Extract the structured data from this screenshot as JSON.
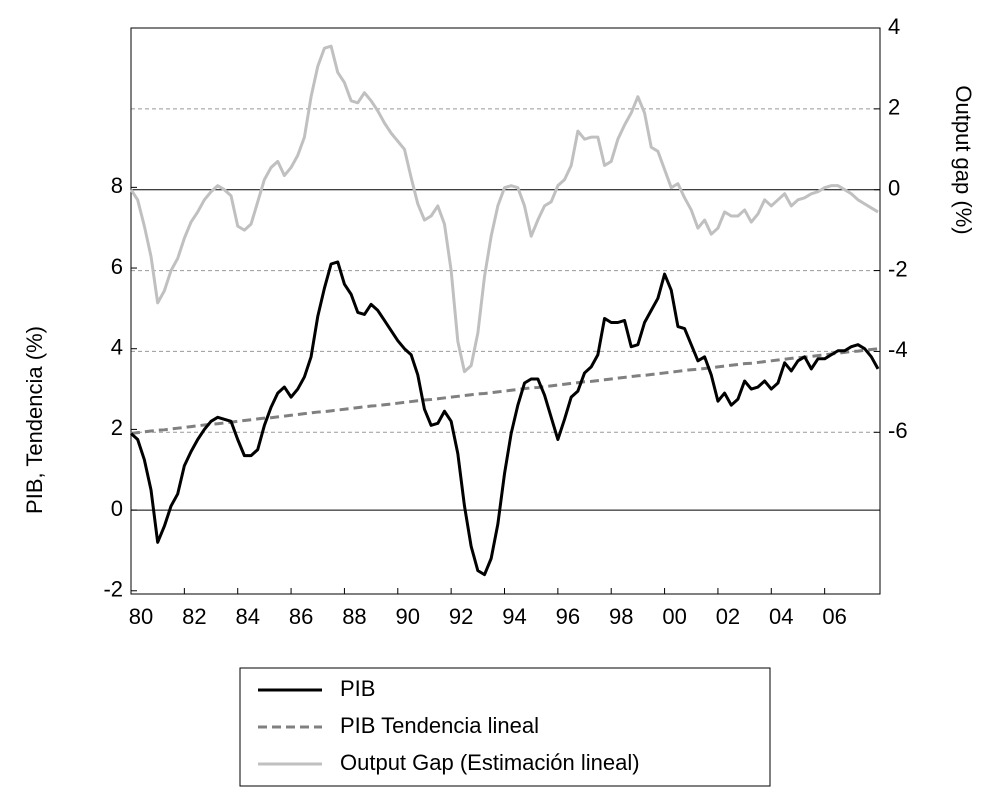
{
  "chart_data": {
    "type": "line",
    "y_label": "PIB, Tendencia (%)",
    "y2_label": "Output gap (%)",
    "categories": [
      "80",
      null,
      null,
      null,
      null,
      null,
      null,
      null,
      "82",
      null,
      null,
      null,
      null,
      null,
      null,
      null,
      "84",
      null,
      null,
      null,
      null,
      null,
      null,
      null,
      "86",
      null,
      null,
      null,
      null,
      null,
      null,
      null,
      "88",
      null,
      null,
      null,
      null,
      null,
      null,
      null,
      "90",
      null,
      null,
      null,
      null,
      null,
      null,
      null,
      "92",
      null,
      null,
      null,
      null,
      null,
      null,
      null,
      "94",
      null,
      null,
      null,
      null,
      null,
      null,
      null,
      "96",
      null,
      null,
      null,
      null,
      null,
      null,
      null,
      "98",
      null,
      null,
      null,
      null,
      null,
      null,
      null,
      "00",
      null,
      null,
      null,
      null,
      null,
      null,
      null,
      "02",
      null,
      null,
      null,
      null,
      null,
      null,
      null,
      "04",
      null,
      null,
      null,
      null,
      null,
      null,
      null,
      "06",
      null,
      null,
      null,
      null,
      null,
      null,
      null,
      null
    ],
    "series": [
      {
        "name": "PIB",
        "color": "#000000",
        "dash": false,
        "axis": "y",
        "values": [
          1.9,
          1.75,
          1.25,
          0.5,
          -0.8,
          -0.4,
          0.1,
          0.4,
          1.1,
          1.45,
          1.75,
          2.0,
          2.2,
          2.3,
          2.25,
          2.2,
          1.75,
          1.35,
          1.35,
          1.5,
          2.1,
          2.55,
          2.9,
          3.05,
          2.8,
          3.0,
          3.3,
          3.8,
          4.8,
          5.5,
          6.1,
          6.15,
          5.6,
          5.35,
          4.9,
          4.85,
          5.1,
          4.95,
          4.7,
          4.45,
          4.2,
          4.0,
          3.85,
          3.35,
          2.5,
          2.1,
          2.15,
          2.45,
          2.2,
          1.4,
          0.1,
          -0.9,
          -1.5,
          -1.6,
          -1.2,
          -0.35,
          0.9,
          1.9,
          2.6,
          3.15,
          3.25,
          3.25,
          2.85,
          2.3,
          1.75,
          2.25,
          2.8,
          2.95,
          3.4,
          3.55,
          3.85,
          4.75,
          4.65,
          4.65,
          4.7,
          4.05,
          4.1,
          4.65,
          4.95,
          5.25,
          5.85,
          5.45,
          4.55,
          4.5,
          4.1,
          3.7,
          3.8,
          3.35,
          2.7,
          2.9,
          2.6,
          2.75,
          3.2,
          3.0,
          3.05,
          3.2,
          3.0,
          3.15,
          3.65,
          3.45,
          3.7,
          3.8,
          3.5,
          3.75,
          3.75,
          3.85,
          3.95,
          3.95,
          4.05,
          4.1,
          4.0,
          3.8,
          3.5
        ]
      },
      {
        "name": "PIB Tendencia lineal",
        "color": "#808080",
        "dash": true,
        "axis": "y",
        "values": [
          1.9,
          1.92,
          1.94,
          1.96,
          1.98,
          1.99,
          2.01,
          2.03,
          2.05,
          2.07,
          2.09,
          2.11,
          2.13,
          2.14,
          2.16,
          2.18,
          2.2,
          2.22,
          2.24,
          2.26,
          2.28,
          2.29,
          2.31,
          2.33,
          2.35,
          2.37,
          2.39,
          2.41,
          2.43,
          2.44,
          2.46,
          2.48,
          2.5,
          2.52,
          2.54,
          2.56,
          2.58,
          2.59,
          2.61,
          2.63,
          2.65,
          2.67,
          2.69,
          2.71,
          2.73,
          2.74,
          2.76,
          2.78,
          2.8,
          2.82,
          2.84,
          2.86,
          2.88,
          2.89,
          2.91,
          2.93,
          2.95,
          2.97,
          2.99,
          3.01,
          3.03,
          3.04,
          3.06,
          3.08,
          3.1,
          3.12,
          3.14,
          3.16,
          3.18,
          3.19,
          3.21,
          3.23,
          3.25,
          3.27,
          3.29,
          3.31,
          3.33,
          3.34,
          3.36,
          3.38,
          3.4,
          3.42,
          3.44,
          3.46,
          3.48,
          3.49,
          3.51,
          3.53,
          3.55,
          3.57,
          3.59,
          3.61,
          3.63,
          3.64,
          3.66,
          3.68,
          3.7,
          3.72,
          3.74,
          3.76,
          3.78,
          3.79,
          3.81,
          3.83,
          3.85,
          3.87,
          3.89,
          3.91,
          3.93,
          3.94,
          3.96,
          3.98,
          4.0
        ]
      },
      {
        "name": "Output Gap (Estimación lineal)",
        "color": "#c0c0c0",
        "dash": false,
        "axis": "y2",
        "values": [
          0,
          -0.25,
          -0.9,
          -1.65,
          -2.8,
          -2.5,
          -2.0,
          -1.7,
          -1.2,
          -0.8,
          -0.55,
          -0.25,
          -0.05,
          0.1,
          0.0,
          -0.15,
          -0.9,
          -1.0,
          -0.85,
          -0.3,
          0.25,
          0.55,
          0.7,
          0.35,
          0.55,
          0.85,
          1.3,
          2.3,
          3.05,
          3.5,
          3.55,
          2.9,
          2.65,
          2.2,
          2.15,
          2.4,
          2.2,
          1.95,
          1.65,
          1.4,
          1.2,
          1.0,
          0.3,
          -0.35,
          -0.75,
          -0.65,
          -0.4,
          -0.85,
          -2.0,
          -3.75,
          -4.5,
          -4.35,
          -3.55,
          -2.15,
          -1.15,
          -0.4,
          0.05,
          0.1,
          0.05,
          -0.4,
          -1.15,
          -0.75,
          -0.4,
          -0.3,
          0.1,
          0.25,
          0.6,
          1.45,
          1.25,
          1.3,
          1.3,
          0.6,
          0.7,
          1.25,
          1.6,
          1.9,
          2.3,
          1.9,
          1.05,
          0.95,
          0.5,
          0.05,
          0.15,
          -0.2,
          -0.5,
          -0.95,
          -0.75,
          -1.1,
          -0.95,
          -0.55,
          -0.65,
          -0.65,
          -0.5,
          -0.8,
          -0.6,
          -0.25,
          -0.4,
          -0.25,
          -0.1,
          -0.4,
          -0.25,
          -0.2,
          -0.1,
          -0.05,
          0.05,
          0.1,
          0.1,
          0.0,
          -0.1,
          -0.25,
          -0.35,
          -0.45,
          -0.55
        ]
      }
    ],
    "ylim": [
      -2.08,
      11.95
    ],
    "yticks": [
      -2,
      0,
      2,
      4,
      6,
      8
    ],
    "y2lim": [
      -10,
      4
    ],
    "y2ticks": [
      -6,
      -4,
      -2,
      0,
      2,
      4
    ],
    "grid": true,
    "legend": "bottom"
  }
}
